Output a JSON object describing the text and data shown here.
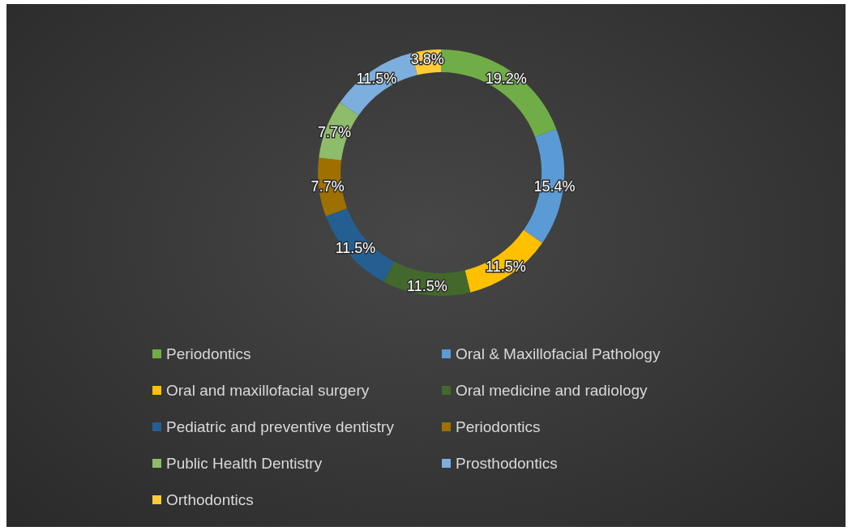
{
  "chart_data": {
    "type": "donut",
    "categories": [
      "Periodontics",
      "Oral & Maxillofacial Pathology",
      "Oral and maxillofacial surgery",
      "Oral medicine and radiology",
      "Pediatric and preventive dentistry",
      "Periodontics",
      "Public Health Dentistry",
      "Prosthodontics",
      "Orthodontics"
    ],
    "values": [
      19.2,
      15.4,
      11.5,
      11.5,
      11.5,
      7.7,
      7.7,
      11.5,
      3.8
    ],
    "value_labels": [
      "19.2%",
      "15.4%",
      "11.5%",
      "11.5%",
      "11.5%",
      "7.7%",
      "7.7%",
      "11.5%",
      "3.8%"
    ],
    "colors": [
      "#70ad47",
      "#5b9bd5",
      "#ffc000",
      "#43682b",
      "#255e91",
      "#9e7000",
      "#8fbc6a",
      "#7cafdd",
      "#ffcd33"
    ],
    "legend": "bottom"
  }
}
